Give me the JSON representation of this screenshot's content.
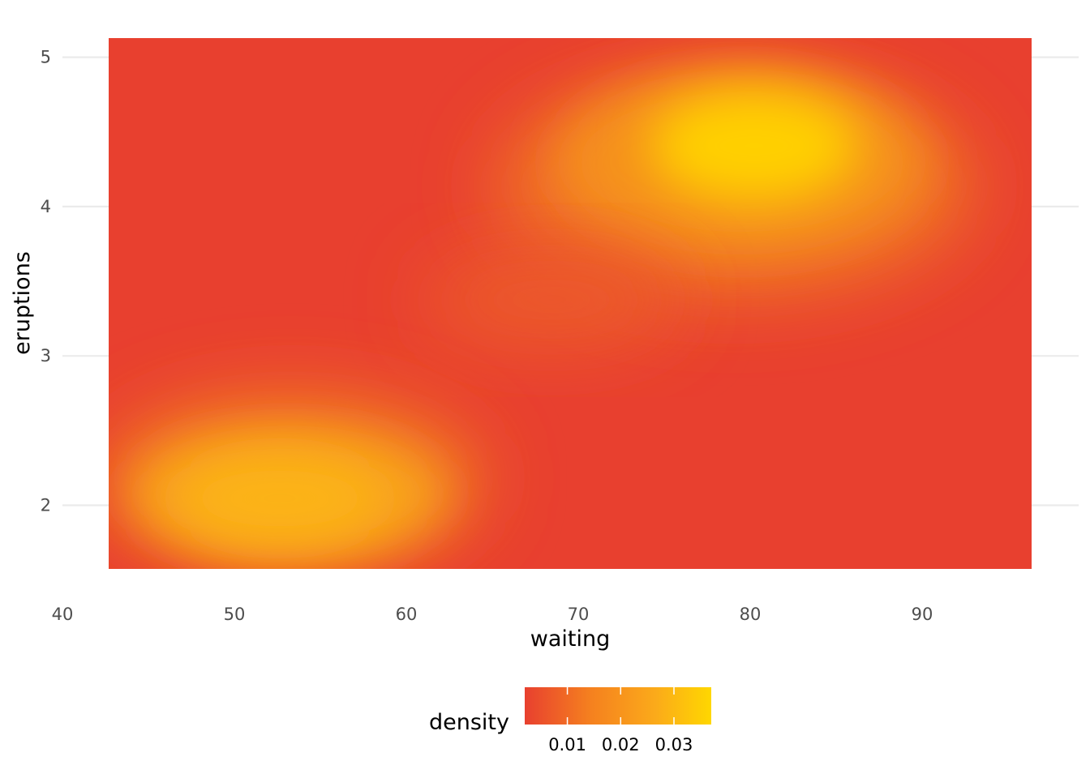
{
  "chart_data": {
    "type": "heatmap",
    "xlabel": "waiting",
    "ylabel": "eruptions",
    "xlim": [
      42.7,
      96.3
    ],
    "ylim": [
      1.6,
      5.1
    ],
    "x_ticks": [
      "40",
      "50",
      "60",
      "70",
      "80",
      "90"
    ],
    "y_ticks": [
      "2",
      "3",
      "4",
      "5"
    ],
    "grid": "horizontal major lines",
    "density_peaks": [
      {
        "waiting": 80.5,
        "eruptions": 4.4,
        "density": 0.037
      },
      {
        "waiting": 53.0,
        "eruptions": 2.0,
        "density": 0.029
      }
    ],
    "legend": {
      "title": "density",
      "position": "bottom",
      "breaks": [
        "0.01",
        "0.02",
        "0.03"
      ],
      "range": [
        0.002,
        0.037
      ]
    },
    "colors": {
      "low": "#e8402f",
      "mid": "#f58a1f",
      "high": "#ffd700"
    }
  }
}
